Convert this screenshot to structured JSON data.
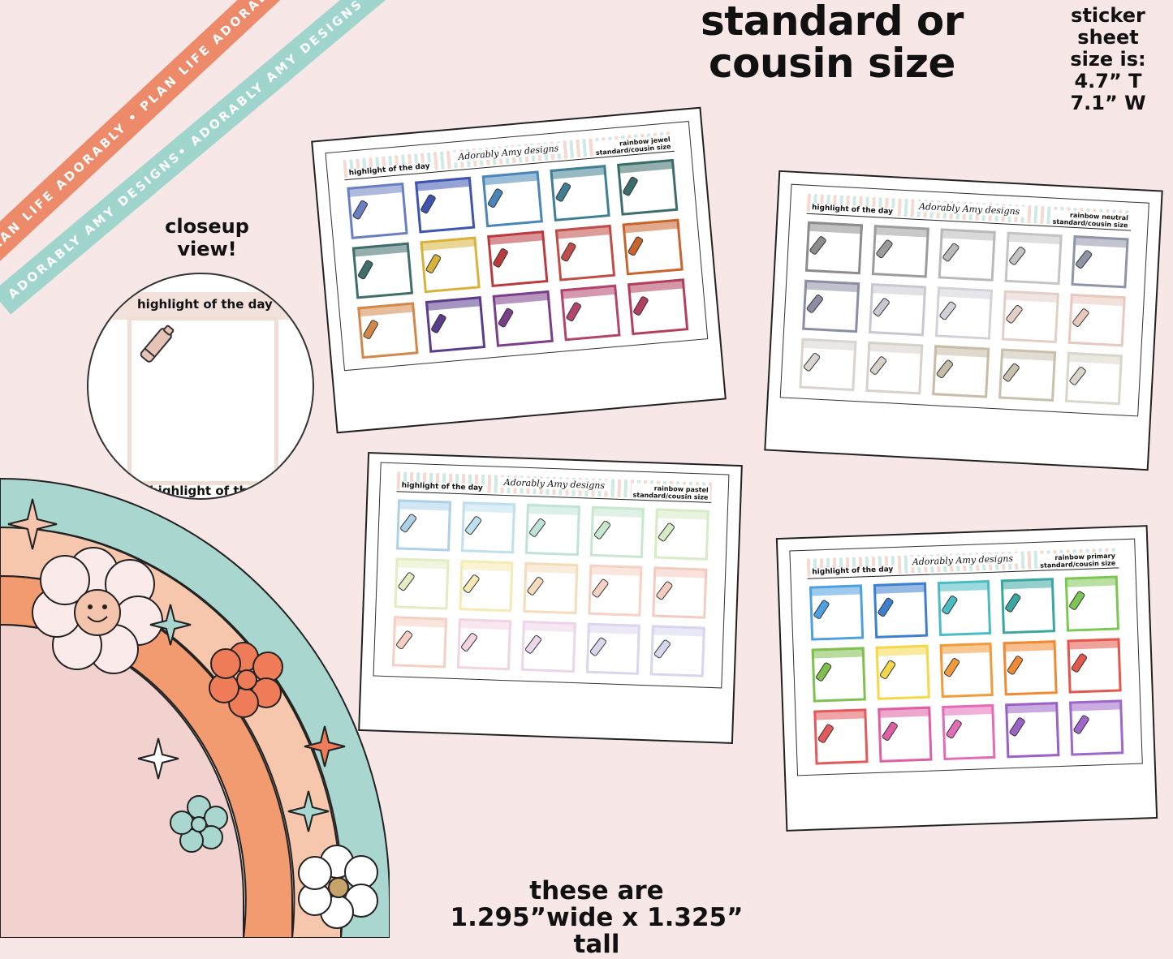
{
  "headline": {
    "line1": "standard or",
    "line2": "cousin size"
  },
  "sheet_size": {
    "line1": "sticker sheet",
    "line2": "size is:",
    "line3": "4.7” T",
    "line4": "7.1” W"
  },
  "closeup": {
    "label_line1": "closeup",
    "label_line2": "view!",
    "title": "highlight of the day",
    "title_cut": "highlight of the"
  },
  "ribbons": {
    "orange": "PLAN LIFE ADORABLY • PLAN LIFE ADORABLY • PLAN LIFE AD",
    "teal": "ADORABLY AMY DESIGNS• ADORABLY AMY DESIGNS • AD"
  },
  "dimensions": {
    "line1": "these are",
    "line2": "1.295”wide x 1.325” tall"
  },
  "sheets": [
    {
      "title": "highlight of the day",
      "logo": "Adorably Amy designs",
      "name_line1": "rainbow jewel",
      "name_line2": "standard/cousin size",
      "colors": [
        "#6a7fc1",
        "#3e55b0",
        "#4a86b8",
        "#3f7f93",
        "#3b6d6a",
        "#3f6e6b",
        "#d9b23a",
        "#b93a3f",
        "#c04d47",
        "#c9642e",
        "#d38748",
        "#5b3c8c",
        "#7b3e8a",
        "#b2446e",
        "#b23f5c"
      ]
    },
    {
      "title": "highlight of the day",
      "logo": "Adorably Amy designs",
      "name_line1": "rainbow neutral",
      "name_line2": "standard/cousin size",
      "colors": [
        "#8c8c8c",
        "#9c9c9c",
        "#b9b9b9",
        "#c4c4c4",
        "#8f95a7",
        "#8b8ea3",
        "#c8c8d2",
        "#d2d2da",
        "#e3cfc8",
        "#e9c8be",
        "#d9d4cf",
        "#d7d2c9",
        "#c7bca5",
        "#c9c1ad",
        "#dad6ca"
      ]
    },
    {
      "title": "highlight of the day",
      "logo": "Adorably Amy designs",
      "name_line1": "rainbow pastel",
      "name_line2": "standard/cousin size",
      "colors": [
        "#aed1ea",
        "#bfe0ee",
        "#bfe3d9",
        "#c7e7cf",
        "#d7ebc4",
        "#e4ecc1",
        "#f5eab5",
        "#f6dcbd",
        "#f7d2c4",
        "#f4cbbf",
        "#f5cfc3",
        "#f3d3e2",
        "#ecd6ea",
        "#dcd5ee",
        "#d6d6ef"
      ]
    },
    {
      "title": "highlight of the day",
      "logo": "Adorably Amy designs",
      "name_line1": "rainbow primary",
      "name_line2": "standard/cousin size",
      "colors": [
        "#4fa0de",
        "#3f7fd0",
        "#4cbcc4",
        "#3aa7a2",
        "#7cc653",
        "#7fc04e",
        "#f4d84a",
        "#f39a3b",
        "#f18a35",
        "#e4574c",
        "#e3595c",
        "#df5fa4",
        "#e36cb8",
        "#9b62c6",
        "#a067cb"
      ]
    }
  ]
}
